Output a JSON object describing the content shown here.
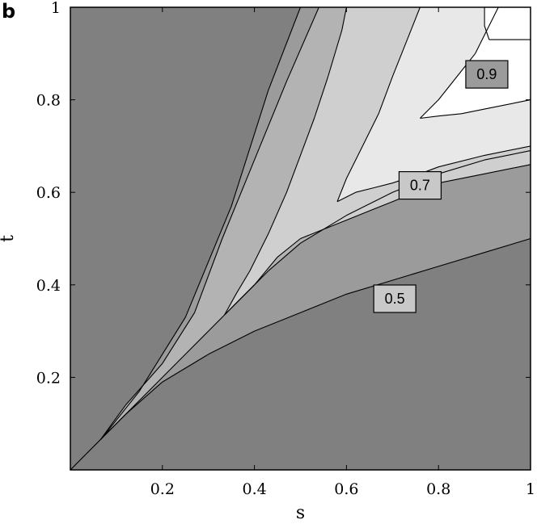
{
  "panel_label": "b",
  "chart_data": {
    "type": "contour",
    "xlabel": "s",
    "ylabel": "t",
    "xlim": [
      0,
      1
    ],
    "ylim": [
      0,
      1
    ],
    "xticks": [
      0.2,
      0.4,
      0.6,
      0.8,
      1
    ],
    "xtick_labels": [
      "0.2",
      "0.4",
      "0.6",
      "0.8",
      "1"
    ],
    "yticks": [
      0.2,
      0.4,
      0.6,
      0.8,
      1
    ],
    "ytick_labels": [
      "0.2",
      "0.4",
      "0.6",
      "0.8",
      "1"
    ],
    "contour_labels": [
      "0.5",
      "0.7",
      "0.9"
    ],
    "grid": false,
    "colors": {
      "level_0": "#808080",
      "level_1": "#9b9b9b",
      "level_2": "#b3b3b3",
      "level_3": "#cfcfcf",
      "level_4": "#e8e8e8",
      "level_5": "#ffffff",
      "line": "#000000"
    },
    "regions": [
      {
        "level": 1,
        "boundary": [
          [
            0.0,
            0.0
          ],
          [
            0.07,
            0.07
          ],
          [
            0.15,
            0.17
          ],
          [
            0.25,
            0.33
          ],
          [
            0.35,
            0.57
          ],
          [
            0.43,
            0.82
          ],
          [
            0.5,
            1.0
          ],
          [
            1.0,
            1.0
          ],
          [
            1.0,
            0.5
          ],
          [
            0.9,
            0.47
          ],
          [
            0.8,
            0.44
          ],
          [
            0.7,
            0.41
          ],
          [
            0.6,
            0.38
          ],
          [
            0.5,
            0.34
          ],
          [
            0.4,
            0.3
          ],
          [
            0.3,
            0.25
          ],
          [
            0.2,
            0.19
          ],
          [
            0.12,
            0.12
          ],
          [
            0.06,
            0.06
          ]
        ]
      },
      {
        "level": 2,
        "boundary": [
          [
            0.065,
            0.065
          ],
          [
            0.12,
            0.14
          ],
          [
            0.2,
            0.23
          ],
          [
            0.27,
            0.34
          ],
          [
            0.33,
            0.5
          ],
          [
            0.4,
            0.67
          ],
          [
            0.47,
            0.84
          ],
          [
            0.54,
            1.0
          ],
          [
            1.0,
            1.0
          ],
          [
            1.0,
            0.69
          ],
          [
            0.9,
            0.67
          ],
          [
            0.8,
            0.64
          ],
          [
            0.7,
            0.6
          ],
          [
            0.6,
            0.55
          ],
          [
            0.5,
            0.49
          ],
          [
            0.43,
            0.43
          ],
          [
            0.38,
            0.38
          ],
          [
            0.3,
            0.3
          ],
          [
            0.2,
            0.2
          ],
          [
            0.12,
            0.12
          ]
        ]
      },
      {
        "level": 3,
        "boundary": [
          [
            0.335,
            0.335
          ],
          [
            0.36,
            0.36
          ],
          [
            0.4,
            0.4
          ],
          [
            0.45,
            0.46
          ],
          [
            0.5,
            0.5
          ],
          [
            0.55,
            0.52
          ],
          [
            0.6,
            0.54
          ],
          [
            0.65,
            0.56
          ],
          [
            0.7,
            0.58
          ],
          [
            0.8,
            0.62
          ],
          [
            0.9,
            0.64
          ],
          [
            1.0,
            0.66
          ],
          [
            1.0,
            1.0
          ],
          [
            0.6,
            1.0
          ],
          [
            0.59,
            0.95
          ],
          [
            0.56,
            0.85
          ],
          [
            0.53,
            0.76
          ],
          [
            0.5,
            0.68
          ],
          [
            0.47,
            0.6
          ],
          [
            0.43,
            0.51
          ],
          [
            0.39,
            0.43
          ],
          [
            0.36,
            0.38
          ]
        ]
      },
      {
        "level": 4,
        "boundary": [
          [
            0.58,
            0.58
          ],
          [
            0.62,
            0.6
          ],
          [
            0.66,
            0.61
          ],
          [
            0.7,
            0.62
          ],
          [
            0.76,
            0.64
          ],
          [
            0.8,
            0.655
          ],
          [
            0.9,
            0.68
          ],
          [
            1.0,
            0.7
          ],
          [
            1.0,
            1.0
          ],
          [
            0.76,
            1.0
          ],
          [
            0.74,
            0.95
          ],
          [
            0.7,
            0.85
          ],
          [
            0.67,
            0.77
          ],
          [
            0.63,
            0.69
          ],
          [
            0.6,
            0.63
          ]
        ]
      },
      {
        "level": 5,
        "boundary": [
          [
            0.76,
            0.76
          ],
          [
            0.8,
            0.765
          ],
          [
            0.85,
            0.77
          ],
          [
            0.9,
            0.78
          ],
          [
            1.0,
            0.8
          ],
          [
            1.0,
            1.0
          ],
          [
            0.93,
            1.0
          ],
          [
            0.91,
            0.96
          ],
          [
            0.88,
            0.9
          ],
          [
            0.84,
            0.85
          ],
          [
            0.8,
            0.8
          ]
        ]
      },
      {
        "level": 6,
        "boundary": [
          [
            0.9,
            1.0
          ],
          [
            0.9,
            0.96
          ],
          [
            0.91,
            0.93
          ],
          [
            1.0,
            0.93
          ],
          [
            1.0,
            1.0
          ]
        ]
      }
    ],
    "label_positions": [
      {
        "text": "0.5",
        "s": 0.705,
        "t": 0.37
      },
      {
        "text": "0.7",
        "s": 0.76,
        "t": 0.615
      },
      {
        "text": "0.9",
        "s": 0.905,
        "t": 0.855
      }
    ]
  }
}
